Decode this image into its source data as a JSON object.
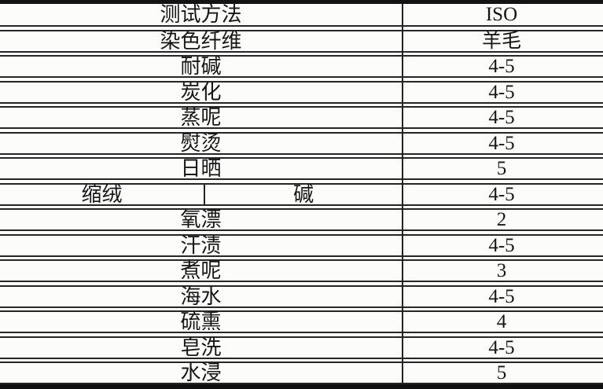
{
  "table": {
    "title_row": {
      "label": "测试方法",
      "value": "ISO"
    },
    "rows": [
      {
        "label": "测试方法",
        "value": "ISO"
      },
      {
        "label": "染色纤维",
        "value": "羊毛"
      },
      {
        "label": "耐碱",
        "value": "4-5"
      },
      {
        "label": "炭化",
        "value": "4-5"
      },
      {
        "label": "蒸呢",
        "value": "4-5"
      },
      {
        "label": "熨烫",
        "value": "4-5"
      },
      {
        "label": "日晒",
        "value": "5"
      },
      {
        "label_left": "缩绒",
        "label_right": "碱",
        "value": "4-5"
      },
      {
        "label": "氧漂",
        "value": "2"
      },
      {
        "label": "汗渍",
        "value": "4-5"
      },
      {
        "label": "煮呢",
        "value": "3"
      },
      {
        "label": "海水",
        "value": "4-5"
      },
      {
        "label": "硫熏",
        "value": "4"
      },
      {
        "label": "皂洗",
        "value": "4-5"
      },
      {
        "label": "水浸",
        "value": "5"
      }
    ],
    "colors": {
      "line": "#262626",
      "thick_border": "#131313",
      "text": "#161616",
      "background": "#fcfcfb"
    }
  }
}
